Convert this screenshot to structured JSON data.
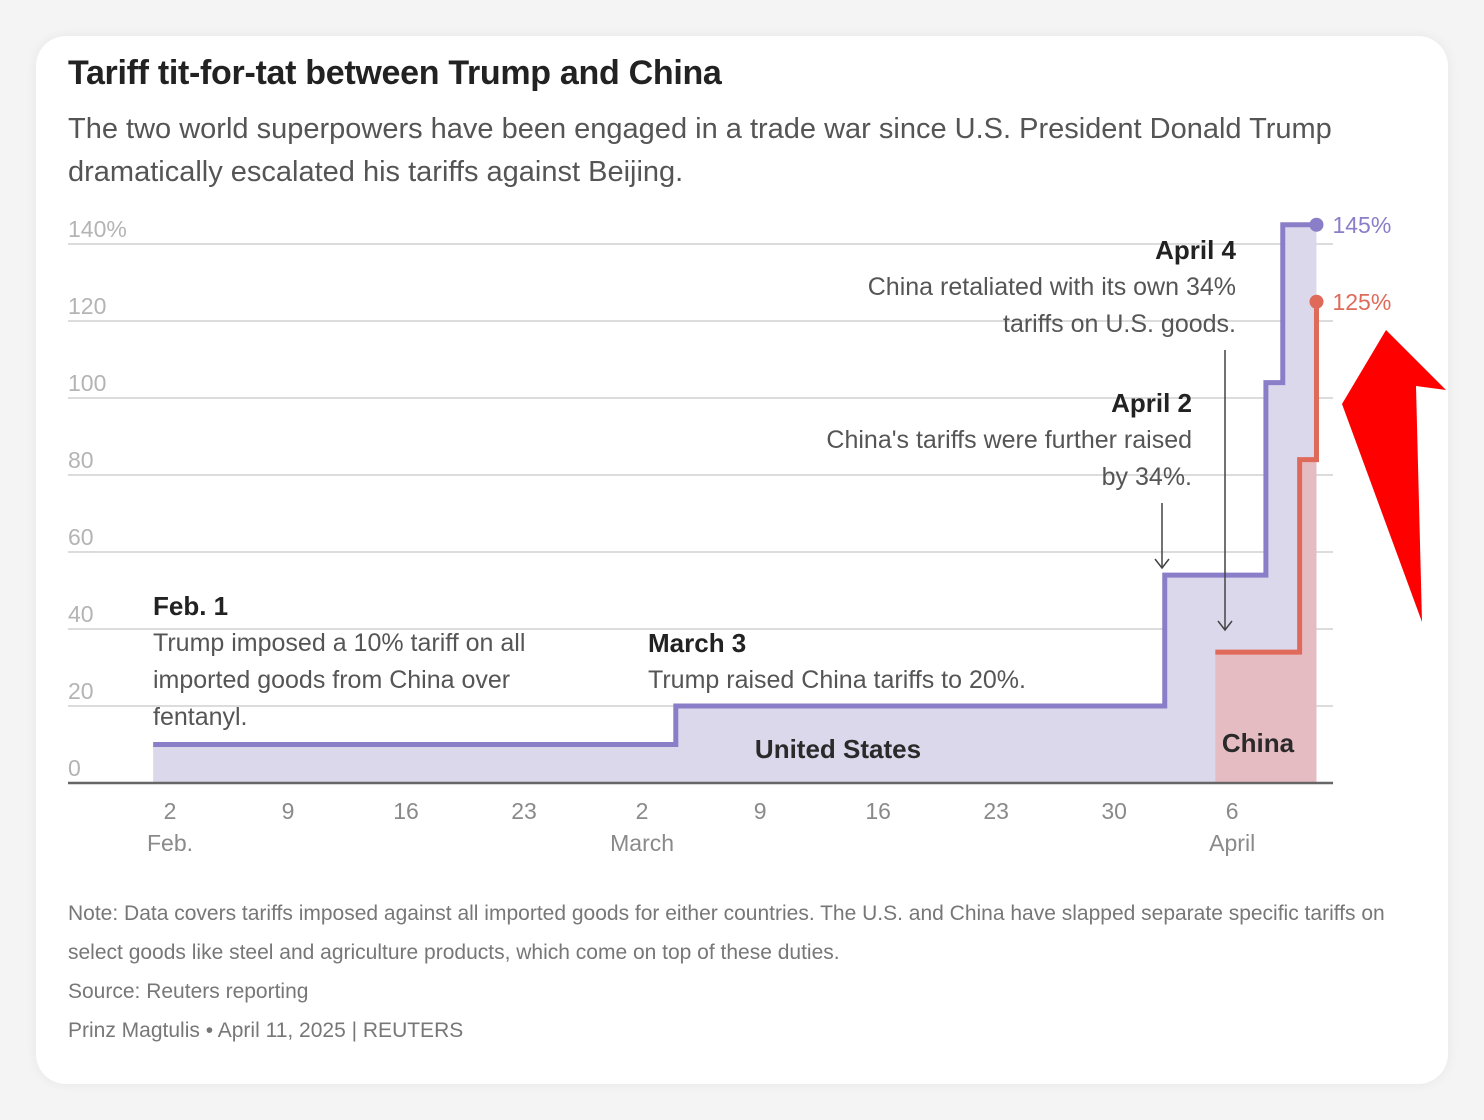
{
  "header": {
    "title": "Tariff tit-for-tat between Trump and China",
    "subtitle": "The two world superpowers have been engaged in a trade war since U.S. President Donald Trump dramatically escalated his tariffs against Beijing."
  },
  "chart_data": {
    "type": "area",
    "ylim": [
      0,
      145
    ],
    "y_ticks": [
      0,
      20,
      40,
      60,
      80,
      100,
      120,
      140
    ],
    "y_tick_labels": [
      "0",
      "20",
      "40",
      "60",
      "80",
      "100",
      "120",
      "140%"
    ],
    "x_ticks": [
      {
        "date": "2025-02-02",
        "day": "2",
        "month": "Feb."
      },
      {
        "date": "2025-02-09",
        "day": "9",
        "month": ""
      },
      {
        "date": "2025-02-16",
        "day": "16",
        "month": ""
      },
      {
        "date": "2025-02-23",
        "day": "23",
        "month": ""
      },
      {
        "date": "2025-03-02",
        "day": "2",
        "month": "March"
      },
      {
        "date": "2025-03-09",
        "day": "9",
        "month": ""
      },
      {
        "date": "2025-03-16",
        "day": "16",
        "month": ""
      },
      {
        "date": "2025-03-23",
        "day": "23",
        "month": ""
      },
      {
        "date": "2025-03-30",
        "day": "30",
        "month": ""
      },
      {
        "date": "2025-04-06",
        "day": "6",
        "month": "April"
      }
    ],
    "grid": true,
    "series": [
      {
        "name": "United States",
        "color": "#8b7ec8",
        "fill": "#dcd8ec",
        "end_label": "145%",
        "steps": [
          {
            "date": "2025-02-01",
            "value": 10
          },
          {
            "date": "2025-03-04",
            "value": 20
          },
          {
            "date": "2025-04-02",
            "value": 54
          },
          {
            "date": "2025-04-08",
            "value": 104
          },
          {
            "date": "2025-04-09",
            "value": 145
          },
          {
            "date": "2025-04-11",
            "value": 145
          }
        ]
      },
      {
        "name": "China",
        "color": "#e06a5a",
        "fill": "#e6bcc3",
        "end_label": "125%",
        "steps": [
          {
            "date": "2025-04-05",
            "value": 34
          },
          {
            "date": "2025-04-10",
            "value": 84
          },
          {
            "date": "2025-04-11",
            "value": 125
          },
          {
            "date": "2025-04-11",
            "value": 125
          }
        ]
      }
    ],
    "annotations": [
      {
        "heading": "Feb. 1",
        "lines": [
          "Trump imposed a 10% tariff on all",
          "imported goods from China over",
          "fentanyl."
        ]
      },
      {
        "heading": "March 3",
        "lines": [
          "Trump raised China tariffs to 20%."
        ]
      },
      {
        "heading": "April 2",
        "lines": [
          "China's tariffs were further raised",
          "by 34%."
        ]
      },
      {
        "heading": "April 4",
        "lines": [
          "China retaliated with its own 34%",
          "tariffs on U.S. goods."
        ]
      }
    ]
  },
  "footer": {
    "note": "Note: Data covers tariffs imposed against all imported goods for either countries. The U.S. and China have slapped separate specific tariffs on select goods like steel and agriculture products, which come on top of these duties.",
    "source": "Source: Reuters reporting",
    "credit": "Prinz Magtulis • April 11, 2025 | REUTERS"
  },
  "overlay": {
    "arrow_color": "#ff0000"
  }
}
